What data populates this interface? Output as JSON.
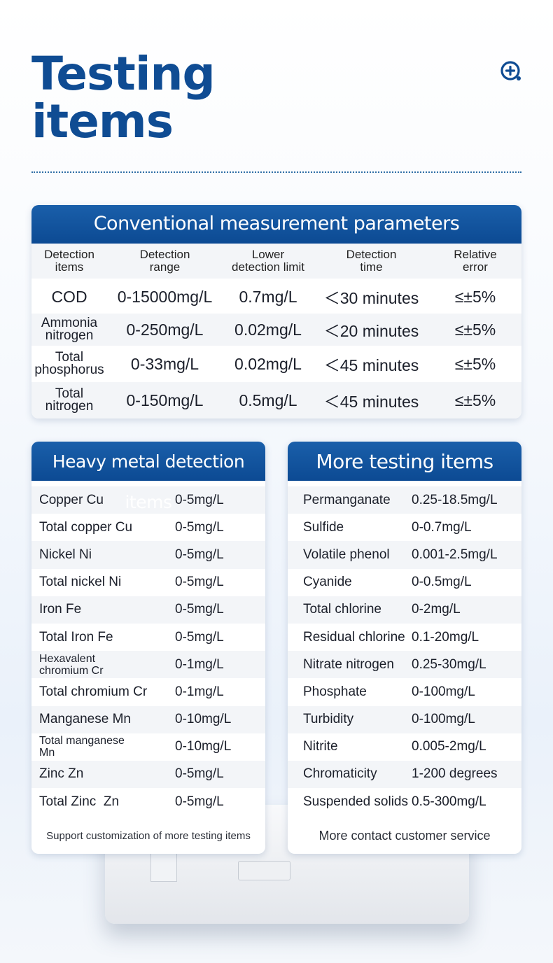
{
  "title": {
    "line1": "Testing",
    "line2": "items"
  },
  "conventional": {
    "heading": "Conventional measurement parameters",
    "columns": [
      {
        "l1": "Detection",
        "l2": "items"
      },
      {
        "l1": "Detection",
        "l2": "range"
      },
      {
        "l1": "Lower",
        "l2": "detection limit"
      },
      {
        "l1": "Detection",
        "l2": "time"
      },
      {
        "l1": "Relative",
        "l2": "error"
      }
    ],
    "rows": [
      {
        "l1": "COD",
        "l2": "",
        "range": "0-15000mg/L",
        "limit": "0.7mg/L",
        "time": "＜30 minutes",
        "error": "≤±5%"
      },
      {
        "l1": "Ammonia",
        "l2": "nitrogen",
        "range": "0-250mg/L",
        "limit": "0.02mg/L",
        "time": "＜20 minutes",
        "error": "≤±5%"
      },
      {
        "l1": "Total",
        "l2": "phosphorus",
        "range": "0-33mg/L",
        "limit": "0.02mg/L",
        "time": "＜45 minutes",
        "error": "≤±5%"
      },
      {
        "l1": "Total",
        "l2": "nitrogen",
        "range": "0-150mg/L",
        "limit": "0.5mg/L",
        "time": "＜45 minutes",
        "error": "≤±5%"
      }
    ]
  },
  "heavy": {
    "heading": "Heavy metal detection items",
    "items": [
      {
        "name": "Copper Cu",
        "value": "0-5mg/L"
      },
      {
        "name": "Total copper Cu",
        "value": "0-5mg/L"
      },
      {
        "name": "Nickel Ni",
        "value": "0-5mg/L"
      },
      {
        "name": "Total nickel Ni",
        "value": "0-5mg/L"
      },
      {
        "name": "Iron Fe",
        "value": "0-5mg/L"
      },
      {
        "name": "Total Iron Fe",
        "value": "0-5mg/L"
      },
      {
        "name": "Hexavalent chromium Cr",
        "value": "0-1mg/L"
      },
      {
        "name": "Total chromium Cr",
        "value": "0-1mg/L"
      },
      {
        "name": "Manganese Mn",
        "value": "0-10mg/L"
      },
      {
        "name": "Total manganese Mn",
        "value": "0-10mg/L"
      },
      {
        "name": "Zinc Zn",
        "value": "0-5mg/L"
      },
      {
        "name": "Total Zinc  Zn",
        "value": "0-5mg/L"
      }
    ],
    "footer": "Support customization of more testing items"
  },
  "more": {
    "heading": "More testing items",
    "items": [
      {
        "name": "Permanganate",
        "value": "0.25-18.5mg/L"
      },
      {
        "name": "Sulfide",
        "value": "0-0.7mg/L"
      },
      {
        "name": "Volatile phenol",
        "value": "0.001-2.5mg/L"
      },
      {
        "name": "Cyanide",
        "value": "0-0.5mg/L"
      },
      {
        "name": "Total chlorine",
        "value": "0-2mg/L"
      },
      {
        "name": "Residual chlorine",
        "value": "0.1-20mg/L"
      },
      {
        "name": "Nitrate nitrogen",
        "value": "0.25-30mg/L"
      },
      {
        "name": "Phosphate",
        "value": "0-100mg/L"
      },
      {
        "name": "Turbidity",
        "value": "0-100mg/L"
      },
      {
        "name": "Nitrite",
        "value": "0.005-2mg/L"
      },
      {
        "name": "Chromaticity",
        "value": "1-200 degrees"
      },
      {
        "name": "Suspended solids",
        "value": "0.5-300mg/L"
      }
    ],
    "footer": "More contact customer service"
  },
  "colors": {
    "primary": "#0f4c93",
    "header_bg": "#1a5faa",
    "row_alt": "#f3f5f8"
  },
  "icons": {
    "zoom": "zoom-in-icon"
  }
}
